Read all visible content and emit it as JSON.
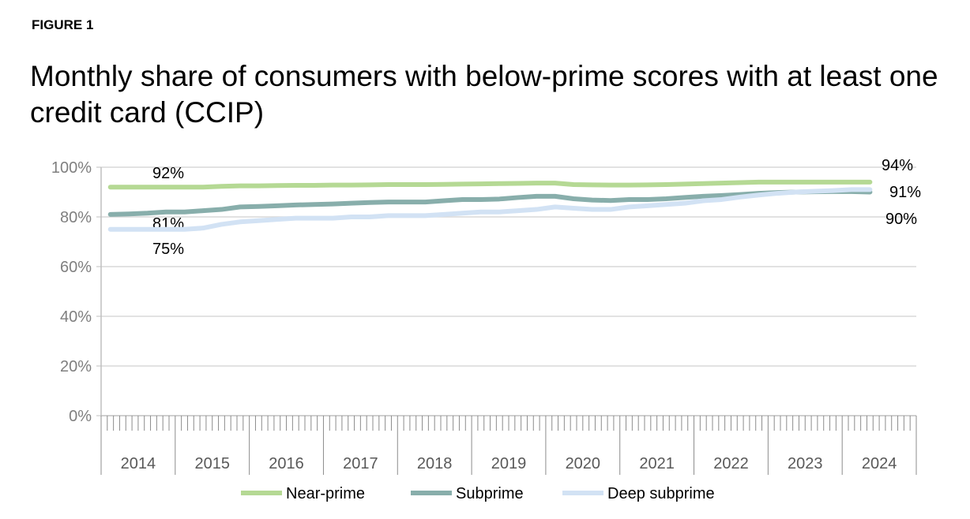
{
  "figure_label": "FIGURE 1",
  "chart_data": {
    "type": "line",
    "title": "Monthly share of consumers with below-prime scores with at least one credit card (CCIP)",
    "xlabel": "",
    "ylabel": "",
    "ylim": [
      0,
      100
    ],
    "yticks": [
      "0%",
      "20%",
      "40%",
      "60%",
      "80%",
      "100%"
    ],
    "ytick_values": [
      0,
      20,
      40,
      60,
      80,
      100
    ],
    "years": [
      "2014",
      "2015",
      "2016",
      "2017",
      "2018",
      "2019",
      "2020",
      "2021",
      "2022",
      "2023",
      "2024"
    ],
    "x_note": "quarterly samples starting 2014 Q1",
    "grid": true,
    "legend_position": "bottom",
    "series": [
      {
        "name": "Near-prime",
        "color": "#b5d994",
        "start_label": "92%",
        "end_label": "94%",
        "values": [
          92,
          92,
          92,
          92,
          92,
          92,
          92.3,
          92.5,
          92.5,
          92.6,
          92.7,
          92.7,
          92.8,
          92.8,
          92.9,
          93,
          93,
          93,
          93.1,
          93.2,
          93.3,
          93.4,
          93.5,
          93.6,
          93.6,
          93,
          92.9,
          92.8,
          92.8,
          92.9,
          93,
          93.2,
          93.4,
          93.6,
          93.8,
          94,
          94,
          94,
          94,
          94,
          94,
          94
        ]
      },
      {
        "name": "Subprime",
        "color": "#88aeab",
        "start_label": "81%",
        "end_label": "90%",
        "values": [
          81,
          81.2,
          81.5,
          82,
          82,
          82.5,
          83,
          84,
          84.2,
          84.5,
          84.8,
          85,
          85.2,
          85.5,
          85.8,
          86,
          86,
          86,
          86.5,
          87,
          87,
          87.2,
          87.8,
          88.3,
          88.3,
          87.3,
          86.8,
          86.6,
          87,
          87,
          87.3,
          87.8,
          88.3,
          88.6,
          89,
          89.5,
          89.8,
          90,
          90.1,
          90.2,
          90.2,
          90
        ]
      },
      {
        "name": "Deep subprime",
        "color": "#d2e2f4",
        "start_label": "75%",
        "end_label": "91%",
        "values": [
          75,
          75,
          75,
          75,
          75,
          75.5,
          77,
          78,
          78.5,
          79,
          79.5,
          79.5,
          79.5,
          80,
          80,
          80.5,
          80.5,
          80.5,
          81,
          81.5,
          82,
          82,
          82.5,
          83,
          84,
          83.5,
          83,
          83,
          84,
          84.5,
          85,
          85.5,
          86.5,
          87,
          88,
          88.8,
          89.5,
          90,
          90.3,
          90.6,
          91,
          91
        ]
      }
    ]
  }
}
